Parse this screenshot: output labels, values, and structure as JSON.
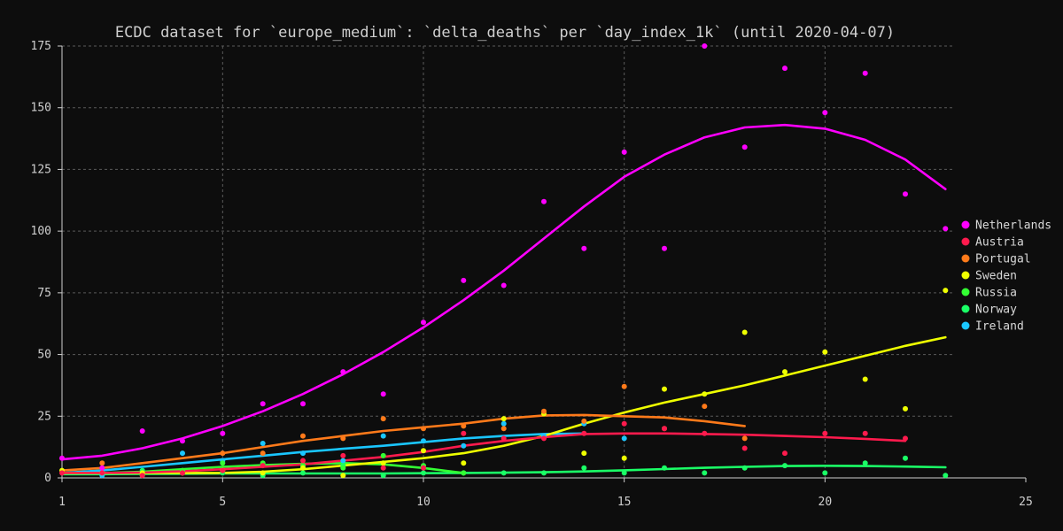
{
  "chart_data": {
    "type": "scatter",
    "title": "ECDC dataset for `europe_medium`: `delta_deaths` per `day_index_1k` (until 2020-04-07)",
    "xlabel": "",
    "ylabel": "",
    "xlim": [
      1,
      25
    ],
    "ylim": [
      0,
      175
    ],
    "xticks": [
      1,
      5,
      10,
      15,
      20,
      25
    ],
    "yticks": [
      0,
      25,
      50,
      75,
      100,
      125,
      150,
      175
    ],
    "grid": true,
    "legend_position": "right",
    "series": [
      {
        "name": "Netherlands",
        "color": "#ff00ff",
        "points": [
          [
            1,
            8
          ],
          [
            2,
            4
          ],
          [
            3,
            19
          ],
          [
            4,
            15
          ],
          [
            5,
            18
          ],
          [
            6,
            30
          ],
          [
            7,
            30
          ],
          [
            8,
            43
          ],
          [
            9,
            34
          ],
          [
            10,
            63
          ],
          [
            11,
            80
          ],
          [
            12,
            78
          ],
          [
            13,
            112
          ],
          [
            14,
            93
          ],
          [
            15,
            132
          ],
          [
            16,
            93
          ],
          [
            17,
            175
          ],
          [
            18,
            134
          ],
          [
            19,
            166
          ],
          [
            20,
            148
          ],
          [
            21,
            164
          ],
          [
            22,
            115
          ],
          [
            23,
            101
          ]
        ],
        "trend": [
          [
            1,
            7.5
          ],
          [
            2,
            9
          ],
          [
            3,
            12
          ],
          [
            4,
            16
          ],
          [
            5,
            21
          ],
          [
            6,
            27
          ],
          [
            7,
            34
          ],
          [
            8,
            42
          ],
          [
            9,
            51
          ],
          [
            10,
            61
          ],
          [
            11,
            72
          ],
          [
            12,
            84
          ],
          [
            13,
            97
          ],
          [
            14,
            110
          ],
          [
            15,
            122
          ],
          [
            16,
            131
          ],
          [
            17,
            138
          ],
          [
            18,
            142
          ],
          [
            19,
            143
          ],
          [
            20,
            141.5
          ],
          [
            21,
            137
          ],
          [
            22,
            129
          ],
          [
            23,
            117
          ]
        ]
      },
      {
        "name": "Austria",
        "color": "#ff1a4d",
        "points": [
          [
            1,
            2
          ],
          [
            2,
            2
          ],
          [
            3,
            1
          ],
          [
            4,
            2
          ],
          [
            5,
            3
          ],
          [
            6,
            5
          ],
          [
            7,
            7
          ],
          [
            8,
            9
          ],
          [
            9,
            4
          ],
          [
            10,
            4
          ],
          [
            11,
            18
          ],
          [
            12,
            16
          ],
          [
            13,
            16
          ],
          [
            14,
            18
          ],
          [
            15,
            22
          ],
          [
            16,
            20
          ],
          [
            17,
            18
          ],
          [
            18,
            12
          ],
          [
            19,
            10
          ],
          [
            20,
            18
          ],
          [
            21,
            18
          ],
          [
            22,
            16
          ]
        ],
        "trend": [
          [
            1,
            2
          ],
          [
            2,
            2
          ],
          [
            3,
            2.2
          ],
          [
            4,
            2.7
          ],
          [
            5,
            3.5
          ],
          [
            6,
            4.5
          ],
          [
            7,
            5.5
          ],
          [
            8,
            7
          ],
          [
            9,
            8.5
          ],
          [
            10,
            10.5
          ],
          [
            11,
            13
          ],
          [
            12,
            15
          ],
          [
            13,
            16.5
          ],
          [
            14,
            17.8
          ],
          [
            15,
            18
          ],
          [
            16,
            18
          ],
          [
            17,
            17.8
          ],
          [
            18,
            17.5
          ],
          [
            19,
            17
          ],
          [
            20,
            16.5
          ],
          [
            21,
            15.8
          ],
          [
            22,
            15
          ]
        ]
      },
      {
        "name": "Portugal",
        "color": "#ff7a1a",
        "points": [
          [
            2,
            6
          ],
          [
            4,
            2
          ],
          [
            5,
            10
          ],
          [
            6,
            10
          ],
          [
            7,
            17
          ],
          [
            8,
            16
          ],
          [
            9,
            24
          ],
          [
            10,
            20
          ],
          [
            11,
            21
          ],
          [
            12,
            20
          ],
          [
            13,
            27
          ],
          [
            14,
            23
          ],
          [
            15,
            37
          ],
          [
            16,
            20
          ],
          [
            17,
            29
          ],
          [
            18,
            16
          ]
        ],
        "trend": [
          [
            1,
            3
          ],
          [
            2,
            4
          ],
          [
            3,
            6
          ],
          [
            4,
            8
          ],
          [
            5,
            10
          ],
          [
            6,
            12.5
          ],
          [
            7,
            15
          ],
          [
            8,
            17
          ],
          [
            9,
            19
          ],
          [
            10,
            20.5
          ],
          [
            11,
            22
          ],
          [
            12,
            24
          ],
          [
            13,
            25.3
          ],
          [
            14,
            25.5
          ],
          [
            15,
            25
          ],
          [
            16,
            24.5
          ],
          [
            17,
            23
          ],
          [
            18,
            21
          ]
        ]
      },
      {
        "name": "Sweden",
        "color": "#eeff00",
        "points": [
          [
            1,
            3
          ],
          [
            2,
            2
          ],
          [
            3,
            2
          ],
          [
            4,
            2
          ],
          [
            5,
            3
          ],
          [
            6,
            2
          ],
          [
            7,
            4
          ],
          [
            8,
            1
          ],
          [
            9,
            6
          ],
          [
            10,
            11
          ],
          [
            11,
            6
          ],
          [
            12,
            24
          ],
          [
            13,
            26
          ],
          [
            14,
            10
          ],
          [
            15,
            8
          ],
          [
            16,
            36
          ],
          [
            17,
            34
          ],
          [
            18,
            59
          ],
          [
            19,
            43
          ],
          [
            20,
            51
          ],
          [
            21,
            40
          ],
          [
            22,
            28
          ],
          [
            23,
            76
          ]
        ],
        "trend": [
          [
            1,
            2
          ],
          [
            2,
            2
          ],
          [
            3,
            2
          ],
          [
            4,
            2
          ],
          [
            5,
            2
          ],
          [
            6,
            2.5
          ],
          [
            7,
            3.5
          ],
          [
            8,
            5
          ],
          [
            9,
            6.5
          ],
          [
            10,
            8
          ],
          [
            11,
            10
          ],
          [
            12,
            13
          ],
          [
            13,
            17
          ],
          [
            14,
            22
          ],
          [
            15,
            26.5
          ],
          [
            16,
            30.5
          ],
          [
            17,
            34
          ],
          [
            18,
            37.5
          ],
          [
            19,
            41.5
          ],
          [
            20,
            45.5
          ],
          [
            21,
            49.5
          ],
          [
            22,
            53.5
          ],
          [
            23,
            57
          ]
        ]
      },
      {
        "name": "Russia",
        "color": "#33ff33",
        "points": [
          [
            3,
            1
          ],
          [
            4,
            3
          ],
          [
            5,
            6
          ],
          [
            6,
            6
          ],
          [
            7,
            5
          ],
          [
            8,
            4
          ],
          [
            9,
            9
          ],
          [
            10,
            5
          ],
          [
            11,
            2
          ]
        ],
        "trend": [
          [
            1,
            2
          ],
          [
            2,
            2
          ],
          [
            3,
            2.5
          ],
          [
            4,
            3.5
          ],
          [
            5,
            4.5
          ],
          [
            6,
            5.2
          ],
          [
            7,
            5.7
          ],
          [
            8,
            6
          ],
          [
            9,
            5.5
          ],
          [
            10,
            4
          ],
          [
            11,
            2
          ]
        ]
      },
      {
        "name": "Norway",
        "color": "#1aff66",
        "points": [
          [
            2,
            2
          ],
          [
            3,
            3
          ],
          [
            4,
            2
          ],
          [
            5,
            2
          ],
          [
            6,
            1
          ],
          [
            7,
            2
          ],
          [
            8,
            5
          ],
          [
            9,
            1
          ],
          [
            10,
            2
          ],
          [
            11,
            2
          ],
          [
            12,
            2
          ],
          [
            13,
            2
          ],
          [
            14,
            4
          ],
          [
            15,
            2
          ],
          [
            16,
            4
          ],
          [
            17,
            2
          ],
          [
            18,
            4
          ],
          [
            19,
            5
          ],
          [
            20,
            2
          ],
          [
            21,
            6
          ],
          [
            22,
            8
          ],
          [
            23,
            1
          ]
        ],
        "trend": [
          [
            1,
            1.5
          ],
          [
            2,
            1.5
          ],
          [
            3,
            1.6
          ],
          [
            4,
            1.7
          ],
          [
            5,
            1.8
          ],
          [
            6,
            1.8
          ],
          [
            7,
            1.8
          ],
          [
            8,
            1.8
          ],
          [
            9,
            1.8
          ],
          [
            10,
            1.9
          ],
          [
            11,
            2
          ],
          [
            12,
            2.1
          ],
          [
            13,
            2.3
          ],
          [
            14,
            2.6
          ],
          [
            15,
            3.1
          ],
          [
            16,
            3.6
          ],
          [
            17,
            4.1
          ],
          [
            18,
            4.5
          ],
          [
            19,
            4.8
          ],
          [
            20,
            4.9
          ],
          [
            21,
            4.8
          ],
          [
            22,
            4.6
          ],
          [
            23,
            4.3
          ]
        ]
      },
      {
        "name": "Ireland",
        "color": "#1ac6ff",
        "points": [
          [
            2,
            1
          ],
          [
            4,
            10
          ],
          [
            5,
            7
          ],
          [
            6,
            14
          ],
          [
            7,
            10
          ],
          [
            8,
            7
          ],
          [
            9,
            17
          ],
          [
            10,
            15
          ],
          [
            11,
            13
          ],
          [
            12,
            22
          ],
          [
            13,
            17
          ],
          [
            14,
            22
          ],
          [
            15,
            16
          ]
        ],
        "trend": [
          [
            1,
            2
          ],
          [
            2,
            3
          ],
          [
            3,
            4.5
          ],
          [
            4,
            6
          ],
          [
            5,
            7.5
          ],
          [
            6,
            9
          ],
          [
            7,
            10.5
          ],
          [
            8,
            11.8
          ],
          [
            9,
            13
          ],
          [
            10,
            14.5
          ],
          [
            11,
            16
          ],
          [
            12,
            17
          ],
          [
            13,
            17.8
          ],
          [
            14,
            18
          ]
        ]
      }
    ]
  }
}
